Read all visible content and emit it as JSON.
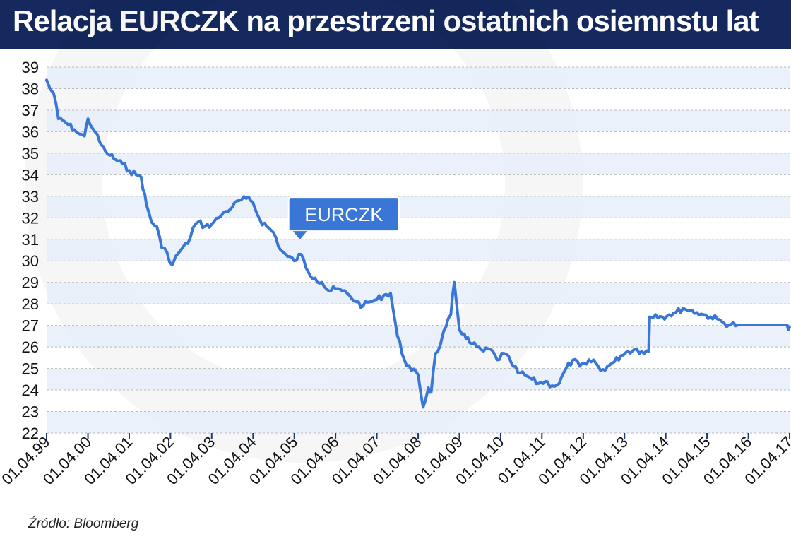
{
  "title": "Relacja EURCZK na przestrzeni ostatnich osiemnstu lat",
  "source": "Źródło: Bloomberg",
  "colors": {
    "header_bg": "#15295e",
    "line": "#3a76d6",
    "band": "#e7eef9",
    "callout_bg": "#3a76d6",
    "callout_text": "#ffffff"
  },
  "chart_data": {
    "type": "line",
    "title": "Relacja EURCZK na przestrzeni ostatnich osiemnstu lat",
    "xlabel": "",
    "ylabel": "",
    "ylim": [
      22,
      39
    ],
    "xlim": [
      "1999-04-01",
      "2017-04-01"
    ],
    "yticks": [
      22,
      23,
      24,
      25,
      26,
      27,
      28,
      29,
      30,
      31,
      32,
      33,
      34,
      35,
      36,
      37,
      38,
      39
    ],
    "xticks": [
      {
        "label": "01.04.99",
        "date": "1999-04-01"
      },
      {
        "label": "01.04.00",
        "date": "2000-04-01"
      },
      {
        "label": "01.04.01",
        "date": "2001-04-01"
      },
      {
        "label": "01.04.02",
        "date": "2002-04-01"
      },
      {
        "label": "01.04.03",
        "date": "2003-04-01"
      },
      {
        "label": "01.04.04",
        "date": "2004-04-01"
      },
      {
        "label": "01.04.05",
        "date": "2005-04-01"
      },
      {
        "label": "01.04.06",
        "date": "2006-04-01"
      },
      {
        "label": "01.04.07",
        "date": "2007-04-01"
      },
      {
        "label": "01.04.08",
        "date": "2008-04-01"
      },
      {
        "label": "01.04.09",
        "date": "2009-04-01"
      },
      {
        "label": "01.04.10",
        "date": "2010-04-01"
      },
      {
        "label": "01.04.11",
        "date": "2011-04-01"
      },
      {
        "label": "01.04.12",
        "date": "2012-04-01"
      },
      {
        "label": "01.04.13",
        "date": "2013-04-01"
      },
      {
        "label": "01.04.14",
        "date": "2014-04-01"
      },
      {
        "label": "01.04.15",
        "date": "2015-04-01"
      },
      {
        "label": "01.04.16",
        "date": "2016-04-01"
      },
      {
        "label": "01.04.17",
        "date": "2017-04-01"
      }
    ],
    "grid": true,
    "series": [
      {
        "name": "EURCZK",
        "x": [
          "1999-04-01",
          "1999-05-01",
          "1999-06-01",
          "1999-07-15",
          "1999-09-01",
          "1999-10-15",
          "1999-12-01",
          "2000-01-15",
          "2000-03-01",
          "2000-04-01",
          "2000-06-01",
          "2000-07-15",
          "2000-09-01",
          "2000-10-15",
          "2000-12-01",
          "2001-02-01",
          "2001-04-01",
          "2001-06-01",
          "2001-07-15",
          "2001-09-01",
          "2001-10-15",
          "2001-12-01",
          "2002-01-15",
          "2002-03-01",
          "2002-04-15",
          "2002-06-01",
          "2002-07-15",
          "2002-09-01",
          "2002-10-15",
          "2002-12-01",
          "2003-02-01",
          "2003-04-01",
          "2003-06-01",
          "2003-08-01",
          "2003-10-01",
          "2003-12-01",
          "2004-02-01",
          "2004-04-01",
          "2004-06-01",
          "2004-08-01",
          "2004-10-01",
          "2004-12-01",
          "2005-02-01",
          "2005-04-01",
          "2005-06-01",
          "2005-08-01",
          "2005-10-01",
          "2005-12-01",
          "2006-02-01",
          "2006-04-01",
          "2006-06-01",
          "2006-08-01",
          "2006-10-01",
          "2006-12-01",
          "2007-02-01",
          "2007-04-01",
          "2007-06-01",
          "2007-08-01",
          "2007-10-01",
          "2007-12-01",
          "2008-02-01",
          "2008-04-01",
          "2008-05-15",
          "2008-07-01",
          "2008-07-25",
          "2008-09-01",
          "2008-10-15",
          "2008-12-01",
          "2009-01-15",
          "2009-02-15",
          "2009-04-01",
          "2009-05-15",
          "2009-07-01",
          "2009-09-01",
          "2009-11-01",
          "2010-01-01",
          "2010-03-01",
          "2010-05-01",
          "2010-07-01",
          "2010-09-01",
          "2010-11-01",
          "2011-01-01",
          "2011-03-01",
          "2011-05-01",
          "2011-07-01",
          "2011-09-01",
          "2011-11-01",
          "2012-01-01",
          "2012-03-01",
          "2012-05-01",
          "2012-07-01",
          "2012-09-01",
          "2012-11-01",
          "2013-01-01",
          "2013-03-01",
          "2013-05-01",
          "2013-07-01",
          "2013-09-01",
          "2013-11-01",
          "2013-11-10",
          "2014-01-01",
          "2014-03-01",
          "2014-05-01",
          "2014-07-01",
          "2014-09-01",
          "2014-11-01",
          "2015-01-01",
          "2015-03-01",
          "2015-05-01",
          "2015-07-01",
          "2015-09-01",
          "2015-11-01",
          "2016-01-01",
          "2016-03-01",
          "2016-05-01",
          "2016-07-01",
          "2016-09-01",
          "2016-11-01",
          "2017-01-01",
          "2017-03-01",
          "2017-03-20",
          "2017-04-01"
        ],
        "values": [
          38.4,
          38.0,
          37.8,
          36.6,
          36.5,
          36.3,
          36.1,
          35.9,
          35.8,
          36.6,
          36.0,
          35.5,
          35.1,
          34.9,
          34.7,
          34.5,
          34.2,
          34.0,
          33.9,
          32.6,
          31.8,
          31.6,
          30.6,
          30.4,
          29.8,
          30.3,
          30.6,
          30.8,
          31.5,
          31.8,
          31.6,
          31.7,
          32.0,
          32.3,
          32.5,
          32.8,
          32.9,
          32.7,
          31.9,
          31.6,
          31.3,
          30.5,
          30.2,
          30.0,
          30.3,
          29.5,
          29.2,
          29.0,
          28.6,
          28.7,
          28.6,
          28.4,
          28.1,
          27.9,
          28.1,
          28.2,
          28.4,
          28.5,
          26.5,
          25.4,
          24.9,
          24.7,
          23.2,
          24.1,
          23.9,
          25.7,
          26.1,
          26.9,
          27.5,
          29.0,
          26.8,
          26.6,
          26.2,
          26.0,
          25.8,
          25.9,
          25.4,
          25.7,
          25.3,
          24.8,
          24.7,
          24.5,
          24.3,
          24.4,
          24.2,
          24.3,
          25.0,
          25.4,
          25.1,
          25.2,
          25.4,
          24.9,
          25.1,
          25.3,
          25.6,
          25.8,
          25.9,
          25.8,
          25.8,
          27.4,
          27.5,
          27.4,
          27.5,
          27.6,
          27.8,
          27.7,
          27.6,
          27.5,
          27.4,
          27.3,
          27.1,
          27.05,
          27.02,
          27.02,
          27.02,
          27.02,
          27.02,
          27.02,
          27.02,
          27.02,
          26.8,
          26.9
        ]
      }
    ],
    "annotations": [
      {
        "text": "EURCZK",
        "series": "EURCZK",
        "x": "2005-04-01",
        "y": 30.2
      }
    ]
  }
}
